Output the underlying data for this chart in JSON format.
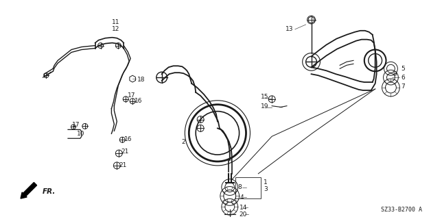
{
  "diagram_code": "SZ33-B2700 A",
  "bg_color": "#ffffff",
  "line_color": "#1a1a1a",
  "fig_width": 6.28,
  "fig_height": 3.2,
  "dpi": 100
}
